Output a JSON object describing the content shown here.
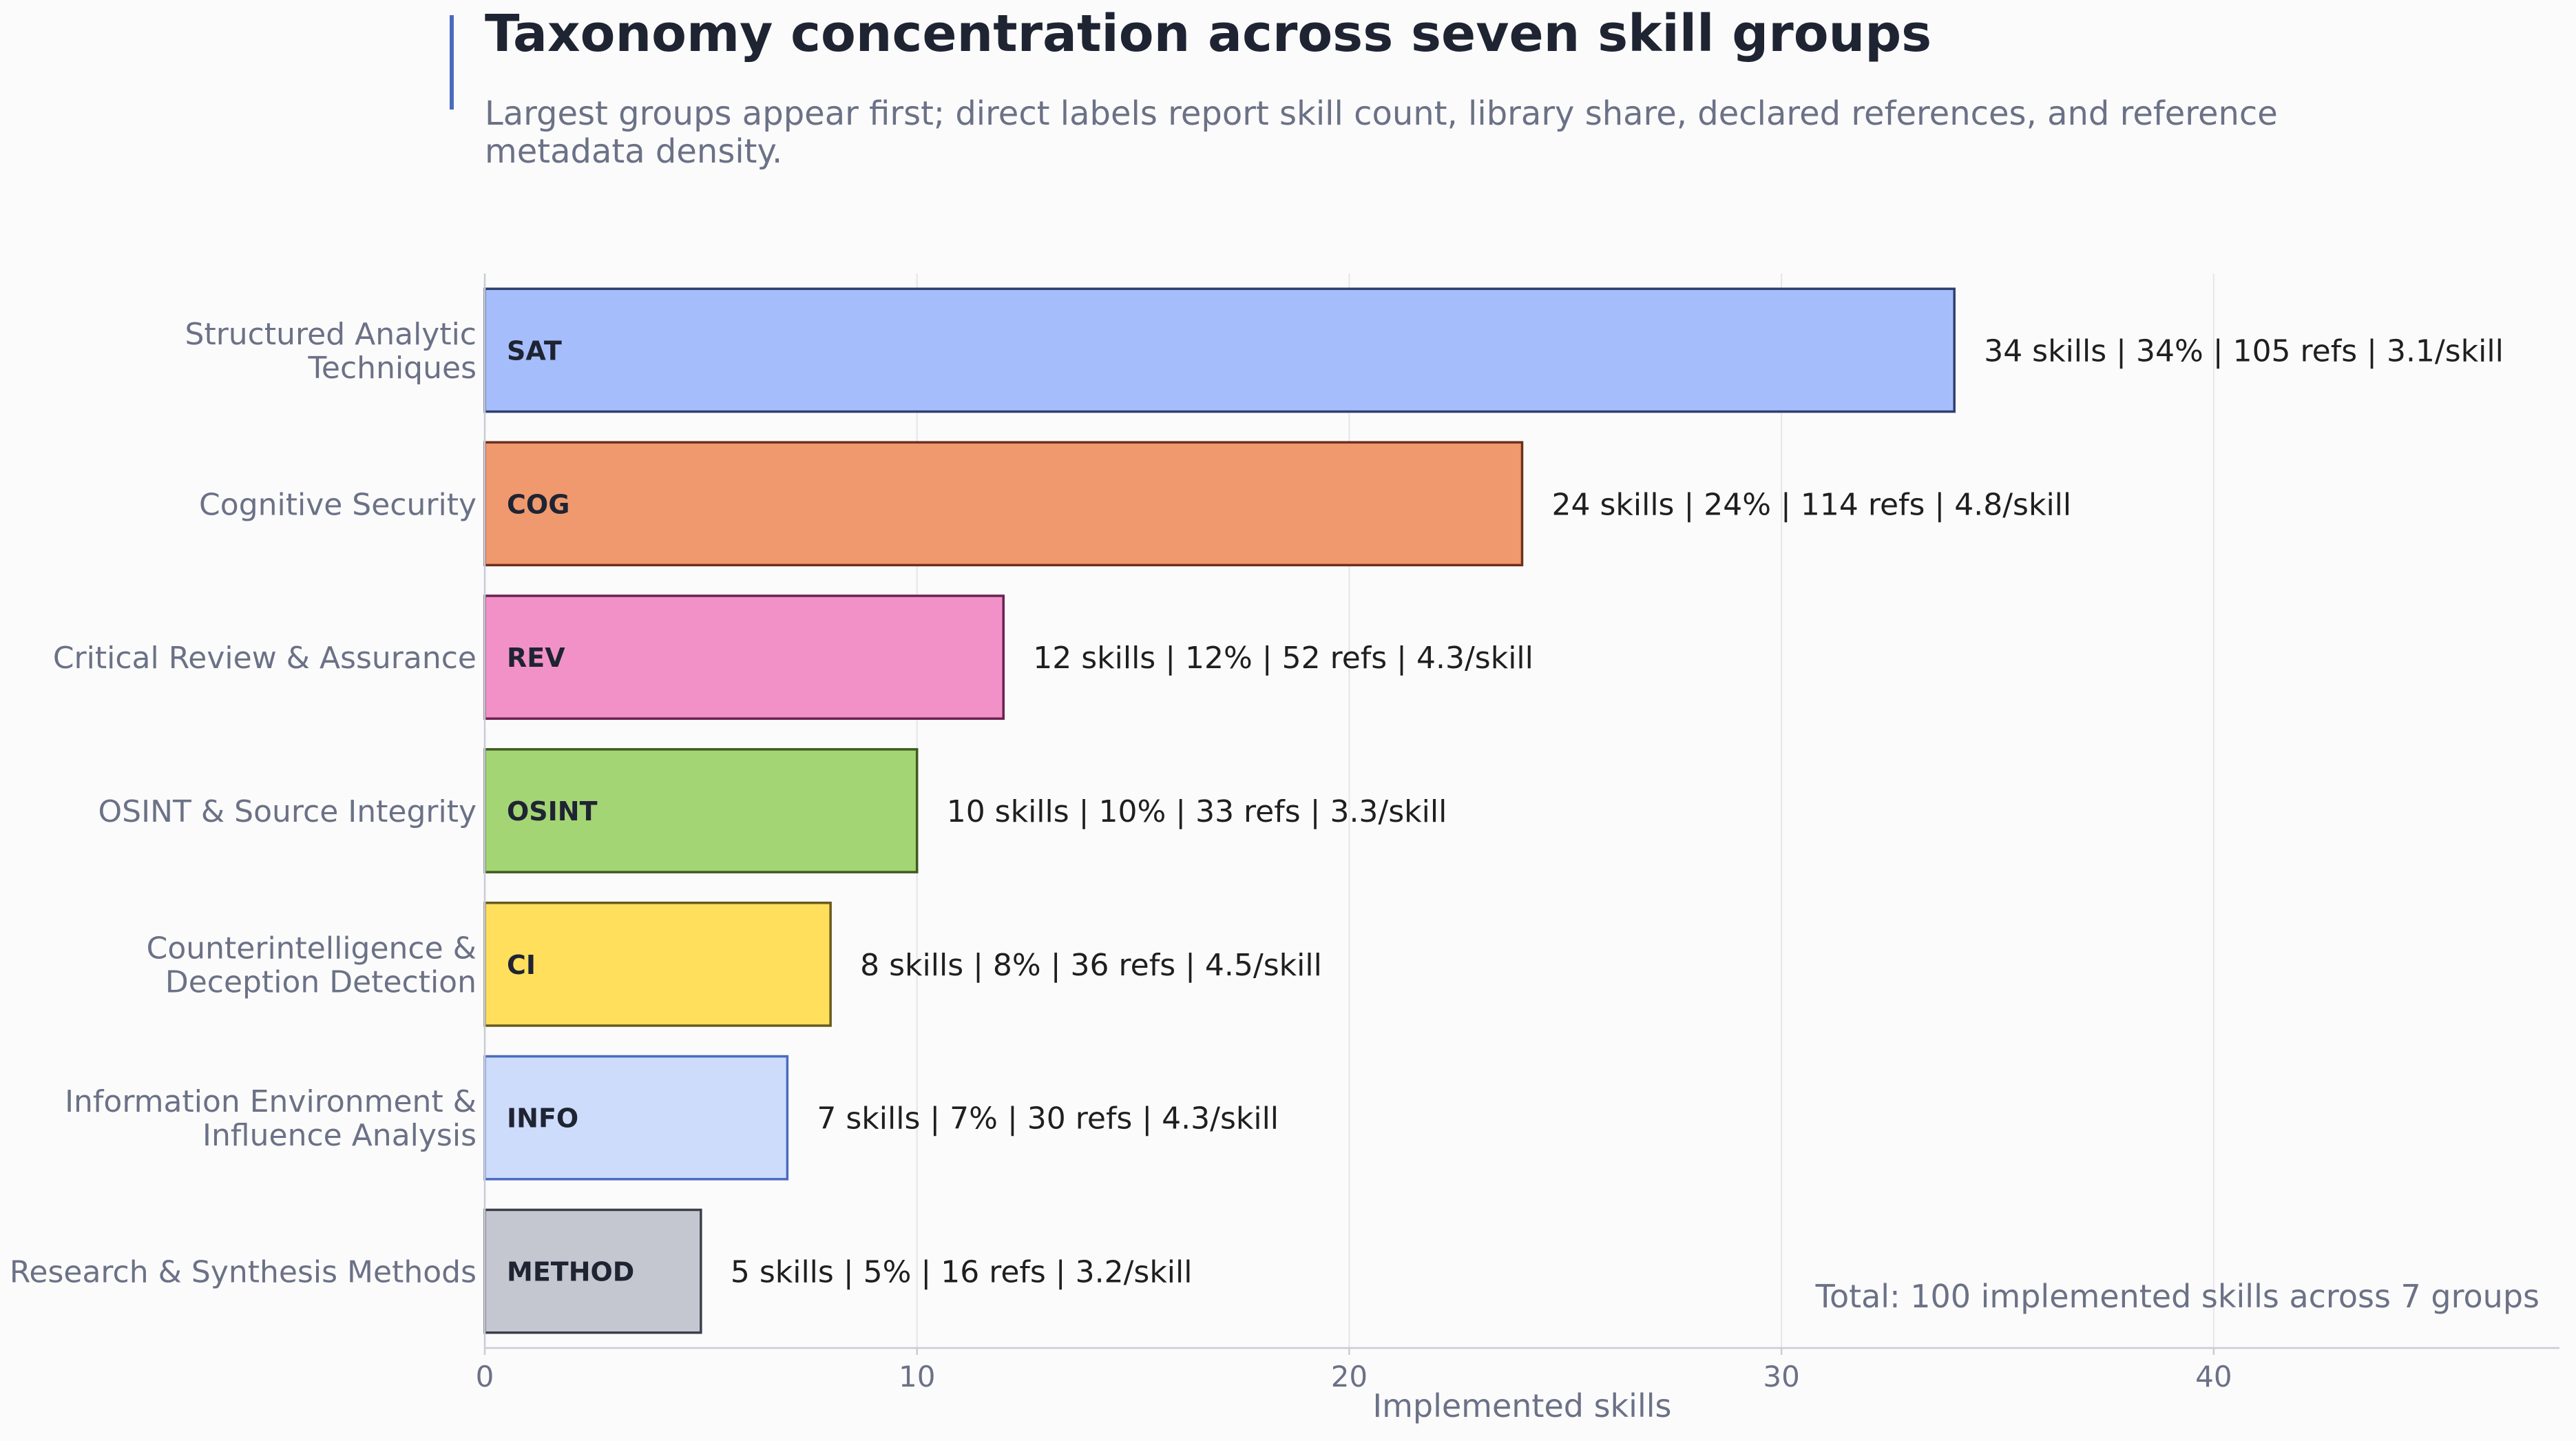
{
  "title": "Taxonomy concentration across seven skill groups",
  "subtitle": "Largest groups appear first; direct labels report skill count, library share, declared references, and reference metadata density.",
  "colors": {
    "background": "#fbfbfb",
    "accent": "#4a6bbf",
    "grid": "#e6e6ea",
    "axis": "#c9ccd6",
    "text_muted": "#6b7186",
    "text_dark": "#1f2433"
  },
  "chart_data": {
    "type": "bar",
    "orientation": "horizontal",
    "xlabel": "Implemented skills",
    "ylabel": "",
    "xlim": [
      0,
      48
    ],
    "xticks": [
      0,
      10,
      20,
      30,
      40
    ],
    "grid": "vertical",
    "categories": [
      "Structured Analytic Techniques",
      "Cognitive Security",
      "Critical Review & Assurance",
      "OSINT & Source Integrity",
      "Counterintelligence & Deception Detection",
      "Information Environment & Influence Analysis",
      "Research & Synthesis Methods"
    ],
    "category_lines": [
      [
        "Structured Analytic",
        "Techniques"
      ],
      [
        "Cognitive Security"
      ],
      [
        "Critical Review & Assurance"
      ],
      [
        "OSINT & Source Integrity"
      ],
      [
        "Counterintelligence &",
        "Deception Detection"
      ],
      [
        "Information Environment &",
        "Influence Analysis"
      ],
      [
        "Research & Synthesis Methods"
      ]
    ],
    "codes": [
      "SAT",
      "COG",
      "REV",
      "OSINT",
      "CI",
      "INFO",
      "METHOD"
    ],
    "values": [
      34,
      24,
      12,
      10,
      8,
      7,
      5
    ],
    "labels": [
      "34 skills | 34% | 105 refs | 3.1/skill",
      "24 skills | 24% | 114 refs | 4.8/skill",
      "12 skills | 12% | 52 refs | 4.3/skill",
      "10 skills | 10% | 33 refs | 3.3/skill",
      "8 skills | 8% | 36 refs | 4.5/skill",
      "7 skills | 7% | 30 refs | 4.3/skill",
      "5 skills | 5% | 16 refs | 3.2/skill"
    ],
    "fill_colors": [
      "#a5bdfa",
      "#f0996e",
      "#f291c8",
      "#a3d574",
      "#ffdf5c",
      "#cedcfc",
      "#c4c7cf"
    ],
    "edge_colors": [
      "#2f3f6e",
      "#6e2f1d",
      "#6b2350",
      "#3f5a22",
      "#6a5a20",
      "#4a6bbf",
      "#3b3f4c"
    ],
    "annotation": "Total: 100 implemented skills across 7 groups"
  }
}
